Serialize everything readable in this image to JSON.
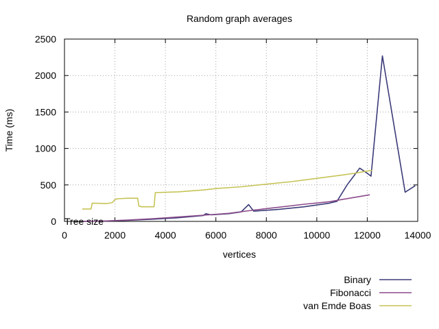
{
  "chart_data": {
    "type": "line",
    "title": "Random graph averages",
    "xlabel": "vertices",
    "ylabel": "Time (ms)",
    "xlim": [
      0,
      14000
    ],
    "ylim": [
      0,
      2500
    ],
    "x_ticks": [
      0,
      2000,
      4000,
      6000,
      8000,
      10000,
      12000,
      14000
    ],
    "y_ticks": [
      0,
      500,
      1000,
      1500,
      2000,
      2500
    ],
    "grid": true,
    "legend_position": "bottom-right",
    "annotation": "Tree size",
    "series": [
      {
        "name": "Binary",
        "color": "#3a3a78",
        "points": [
          [
            700,
            0
          ],
          [
            1500,
            5
          ],
          [
            2500,
            15
          ],
          [
            3500,
            30
          ],
          [
            4500,
            50
          ],
          [
            5500,
            80
          ],
          [
            5600,
            105
          ],
          [
            5800,
            90
          ],
          [
            6500,
            105
          ],
          [
            7000,
            130
          ],
          [
            7300,
            230
          ],
          [
            7500,
            140
          ],
          [
            8500,
            165
          ],
          [
            9500,
            200
          ],
          [
            10500,
            250
          ],
          [
            10800,
            275
          ],
          [
            11200,
            500
          ],
          [
            11700,
            730
          ],
          [
            12000,
            660
          ],
          [
            12150,
            620
          ],
          [
            12600,
            2270
          ],
          [
            13500,
            400
          ],
          [
            13900,
            490
          ]
        ]
      },
      {
        "name": "Fibonacci",
        "color": "#8a4a8a",
        "points": [
          [
            700,
            0
          ],
          [
            1500,
            5
          ],
          [
            2500,
            18
          ],
          [
            3500,
            38
          ],
          [
            4500,
            60
          ],
          [
            5500,
            85
          ],
          [
            6500,
            110
          ],
          [
            7500,
            155
          ],
          [
            8500,
            195
          ],
          [
            9500,
            235
          ],
          [
            10500,
            270
          ],
          [
            11000,
            300
          ],
          [
            11500,
            330
          ],
          [
            12100,
            365
          ]
        ]
      },
      {
        "name": "van Emde Boas",
        "color": "#c6c356",
        "points": [
          [
            700,
            170
          ],
          [
            1050,
            170
          ],
          [
            1100,
            250
          ],
          [
            1700,
            245
          ],
          [
            1900,
            258
          ],
          [
            2000,
            300
          ],
          [
            2100,
            310
          ],
          [
            2500,
            318
          ],
          [
            2900,
            318
          ],
          [
            2950,
            210
          ],
          [
            3050,
            200
          ],
          [
            3550,
            200
          ],
          [
            3600,
            395
          ],
          [
            4500,
            405
          ],
          [
            5500,
            430
          ],
          [
            6000,
            450
          ],
          [
            7000,
            475
          ],
          [
            8000,
            510
          ],
          [
            9000,
            545
          ],
          [
            10000,
            590
          ],
          [
            11000,
            635
          ],
          [
            11500,
            660
          ],
          [
            12000,
            690
          ],
          [
            12200,
            700
          ]
        ]
      }
    ]
  }
}
